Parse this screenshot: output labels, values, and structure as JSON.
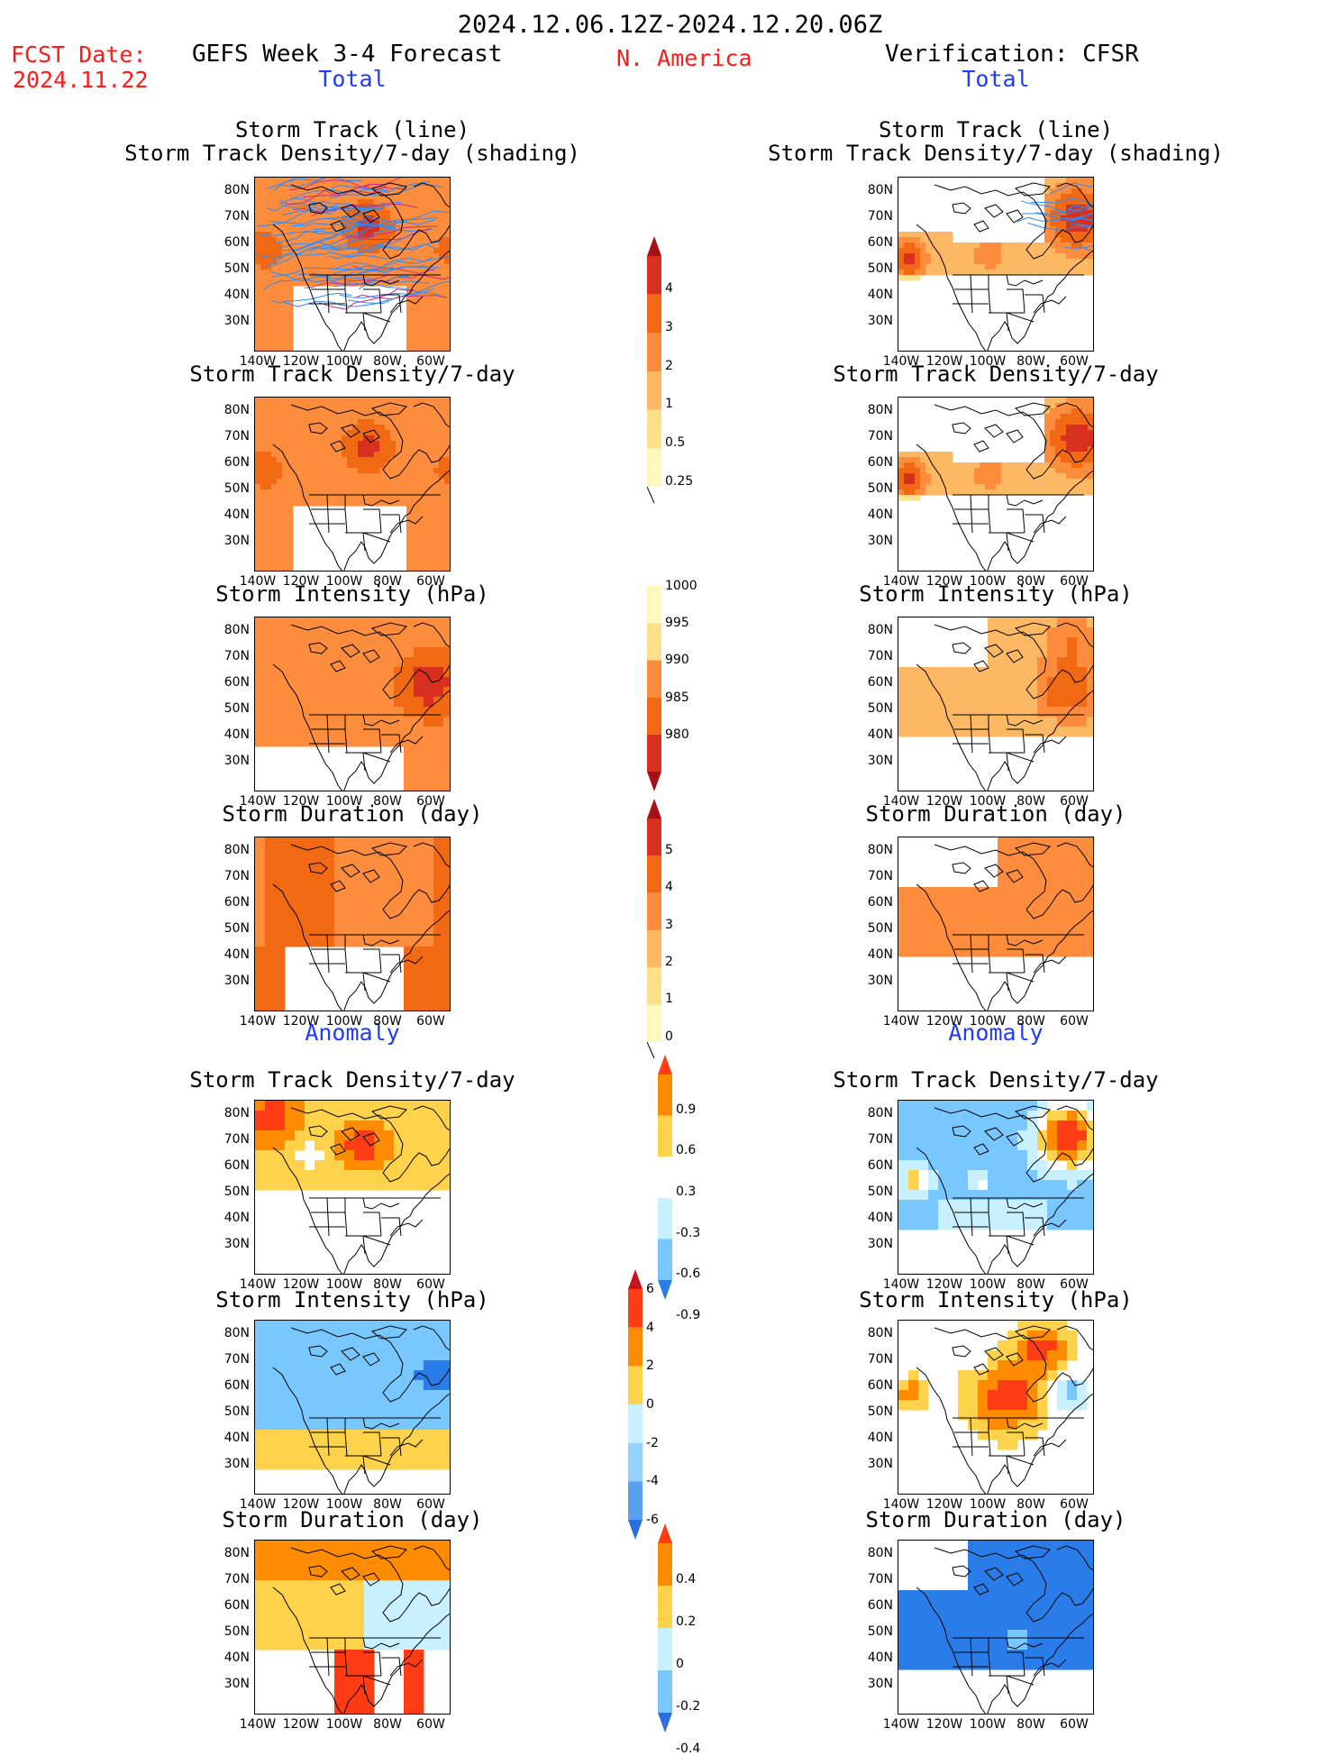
{
  "header": {
    "date_range": "2024.12.06.12Z-2024.12.20.06Z",
    "fcst_label": "FCST Date:",
    "fcst_date": "2024.11.22",
    "forecast_title": "GEFS Week 3-4 Forecast",
    "region": "N. America",
    "verification_title": "Verification: CFSR",
    "total_left": "Total",
    "total_right": "Total",
    "anomaly_left": "Anomaly",
    "anomaly_right": "Anomaly"
  },
  "axes": {
    "y_ticks": [
      "80N",
      "70N",
      "60N",
      "50N",
      "40N",
      "30N"
    ],
    "x_ticks": [
      "140W",
      "120W",
      "100W",
      "80W",
      "60W"
    ]
  },
  "panels": {
    "track_line": "Storm Track (line)",
    "track_density_shading": "Storm Track Density/7-day (shading)",
    "track_density": "Storm Track Density/7-day",
    "intensity": "Storm Intensity (hPa)",
    "duration": "Storm Duration (day)"
  },
  "colorbars": {
    "density": {
      "labels": [
        "4",
        "3",
        "2",
        "1",
        "0.5",
        "0.25"
      ],
      "colors": [
        "#a50f15",
        "#d7301f",
        "#f16913",
        "#fd8d3c",
        "#fdb863",
        "#fee08b",
        "#fff7bc"
      ]
    },
    "intensity": {
      "labels": [
        "1000",
        "995",
        "990",
        "985",
        "980"
      ],
      "colors": [
        "#fff7bc",
        "#fee08b",
        "#fd8d3c",
        "#f16913",
        "#d7301f",
        "#a50f15"
      ]
    },
    "duration": {
      "labels": [
        "5",
        "4",
        "3",
        "2",
        "1",
        "0"
      ],
      "colors": [
        "#a50f15",
        "#d7301f",
        "#f16913",
        "#fd8d3c",
        "#fdb863",
        "#fee08b",
        "#fff7bc"
      ]
    },
    "density_anom": {
      "labels": [
        "0.9",
        "0.6",
        "0.3",
        "-0.3",
        "-0.6",
        "-0.9"
      ],
      "colors": [
        "#ff3c14",
        "#ff8c00",
        "#ffd24b",
        "#ffffff",
        "#c8f0ff",
        "#78c8ff",
        "#2a7de8"
      ]
    },
    "intensity_anom": {
      "labels": [
        "6",
        "4",
        "2",
        "0",
        "-2",
        "-4",
        "-6"
      ],
      "colors": [
        "#c8141e",
        "#ff3c14",
        "#ff8c00",
        "#ffd24b",
        "#c8f0ff",
        "#96d2ff",
        "#5aa0f0",
        "#2a6ee0"
      ]
    },
    "duration_anom": {
      "labels": [
        "0.4",
        "0.2",
        "0",
        "-0.2",
        "-0.4"
      ],
      "colors": [
        "#ff3c14",
        "#ff8c00",
        "#ffd24b",
        "#c8f0ff",
        "#78c8ff",
        "#2a6ee0"
      ]
    }
  }
}
